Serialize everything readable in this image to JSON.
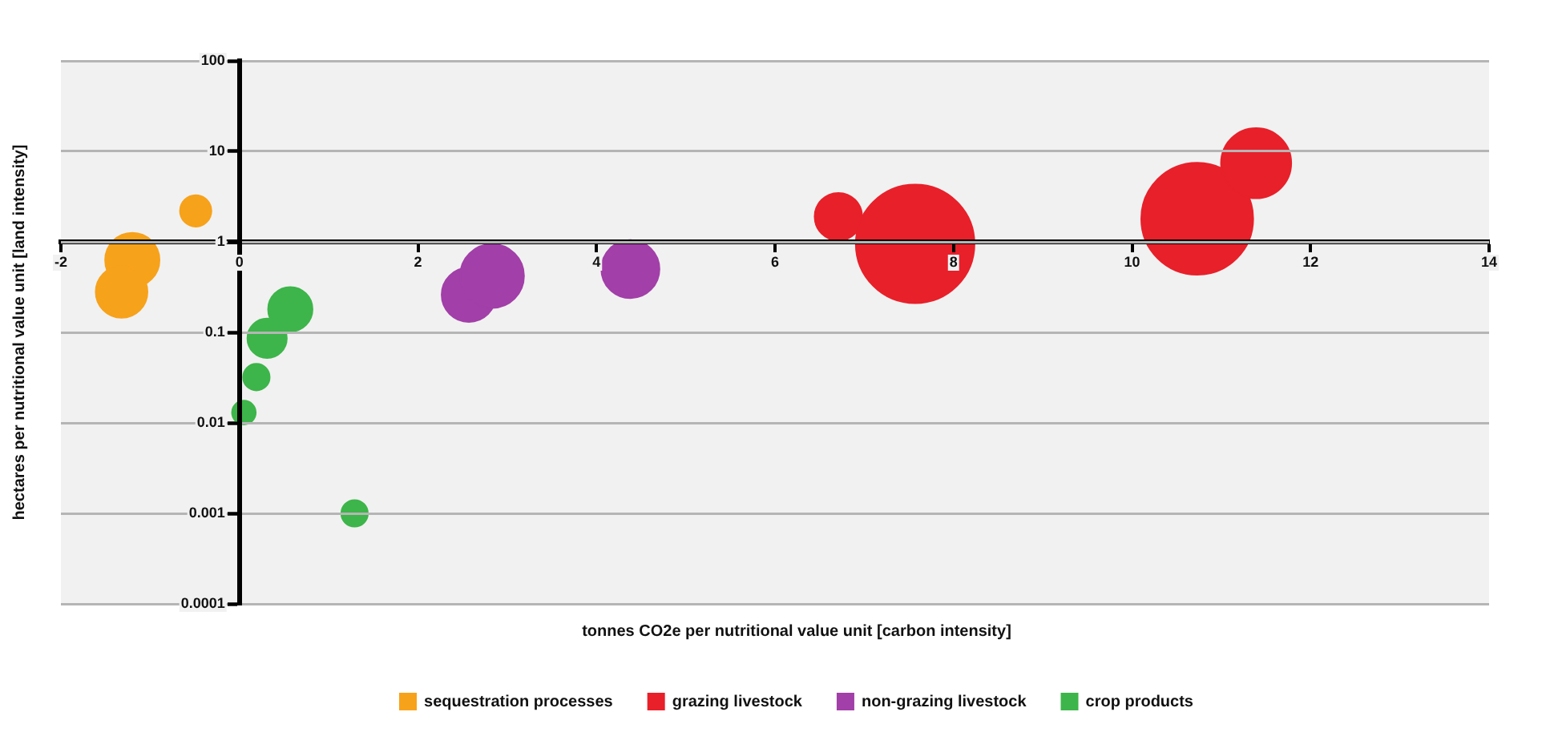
{
  "chart_data": {
    "type": "bubble",
    "xlabel": "tonnes CO2e per nutritional value unit [carbon intensity]",
    "ylabel": "hectares per nutritional value unit [land intensity]",
    "xlim": [
      -2,
      14
    ],
    "xticks": [
      -2,
      0,
      2,
      4,
      6,
      8,
      10,
      12,
      14
    ],
    "ylim": [
      0.0001,
      100
    ],
    "yticks": [
      0.0001,
      0.001,
      0.01,
      0.1,
      1,
      10,
      100
    ],
    "log": "y",
    "grid": "y",
    "legend": "bottom",
    "series": [
      {
        "name": "sequestration processes",
        "color": "#f7a21b",
        "x": [
          -0.49,
          -1.2,
          -1.32
        ],
        "values": [
          2.2,
          0.63,
          0.28
        ],
        "sizes": [
          0.07,
          0.21,
          0.19
        ]
      },
      {
        "name": "grazing livestock",
        "color": "#e8202a",
        "x": [
          6.71,
          7.57,
          10.73,
          11.39
        ],
        "values": [
          1.9,
          0.95,
          1.8,
          7.4
        ],
        "sizes": [
          0.16,
          1,
          0.89,
          0.35
        ]
      },
      {
        "name": "non-grazing livestock",
        "color": "#a23fa8",
        "x": [
          2.57,
          2.83,
          4.38
        ],
        "values": [
          0.26,
          0.42,
          0.5
        ],
        "sizes": [
          0.21,
          0.29,
          0.24
        ]
      },
      {
        "name": "crop products",
        "color": "#3db54a",
        "x": [
          0.57,
          0.31,
          0.19,
          0.05,
          1.29
        ],
        "values": [
          0.18,
          0.086,
          0.032,
          0.013,
          0.001
        ],
        "sizes": [
          0.14,
          0.11,
          0.05,
          0.04,
          0.05
        ]
      }
    ]
  }
}
